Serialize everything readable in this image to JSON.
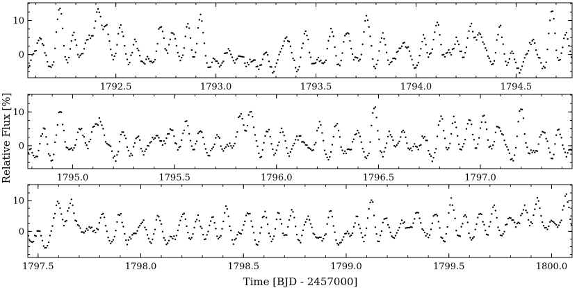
{
  "chart_data": {
    "type": "scatter",
    "ylabel": "Relative Flux [%]",
    "xlabel": "Time [BJD - 2457000]",
    "marker_color": "#000000",
    "grid": false,
    "legend": "none",
    "panels": [
      {
        "xlim": [
          1792.06,
          1794.78
        ],
        "ylim": [
          -6.8,
          15.2
        ],
        "x_ticks": [
          1792.5,
          1793.0,
          1793.5,
          1794.0,
          1794.5
        ],
        "x_tick_labels": [
          "1792.5",
          "1793.0",
          "1793.5",
          "1794.0",
          "1794.5"
        ],
        "y_ticks": [
          0,
          10
        ],
        "y_tick_labels": [
          "0",
          "10"
        ],
        "pulse_peaks": [
          [
            1792.12,
            4.8
          ],
          [
            1792.22,
            11.5
          ],
          [
            1792.29,
            5.5
          ],
          [
            1792.37,
            7.5
          ],
          [
            1792.41,
            10.5
          ],
          [
            1792.45,
            9.5
          ],
          [
            1792.52,
            7.2
          ],
          [
            1792.59,
            3.5
          ],
          [
            1792.72,
            7.0
          ],
          [
            1792.78,
            8.0
          ],
          [
            1792.86,
            7.2
          ],
          [
            1792.92,
            9.5
          ],
          [
            1793.08,
            2.0
          ],
          [
            1793.35,
            5.5
          ],
          [
            1793.45,
            4.5
          ],
          [
            1793.58,
            6.0
          ],
          [
            1793.66,
            6.0
          ],
          [
            1793.75,
            10.5
          ],
          [
            1793.83,
            4.5
          ],
          [
            1793.93,
            5.0
          ],
          [
            1794.04,
            4.5
          ],
          [
            1794.11,
            9.8
          ],
          [
            1794.2,
            5.5
          ],
          [
            1794.27,
            7.5
          ],
          [
            1794.32,
            9.0
          ],
          [
            1794.42,
            7.8
          ],
          [
            1794.58,
            4.5
          ],
          [
            1794.68,
            10.5
          ],
          [
            1794.75,
            6.0
          ]
        ]
      },
      {
        "xlim": [
          1794.78,
          1797.45
        ],
        "ylim": [
          -6.8,
          15.2
        ],
        "x_ticks": [
          1795.0,
          1795.5,
          1796.0,
          1796.5,
          1797.0
        ],
        "x_tick_labels": [
          "1795.0",
          "1795.5",
          "1796.0",
          "1796.5",
          "1797.0"
        ],
        "y_ticks": [
          0,
          10
        ],
        "y_tick_labels": [
          "0",
          "10"
        ],
        "pulse_peaks": [
          [
            1794.86,
            2.5
          ],
          [
            1794.94,
            9.5
          ],
          [
            1795.03,
            5.5
          ],
          [
            1795.1,
            6.0
          ],
          [
            1795.14,
            7.5
          ],
          [
            1795.24,
            3.0
          ],
          [
            1795.32,
            2.5
          ],
          [
            1795.41,
            5.5
          ],
          [
            1795.48,
            5.5
          ],
          [
            1795.55,
            6.5
          ],
          [
            1795.62,
            5.5
          ],
          [
            1795.72,
            3.5
          ],
          [
            1795.82,
            9.5
          ],
          [
            1795.87,
            10.0
          ],
          [
            1795.95,
            3.5
          ],
          [
            1796.03,
            4.5
          ],
          [
            1796.12,
            4.5
          ],
          [
            1796.21,
            5.5
          ],
          [
            1796.3,
            5.0
          ],
          [
            1796.39,
            3.5
          ],
          [
            1796.48,
            9.5
          ],
          [
            1796.56,
            4.5
          ],
          [
            1796.63,
            5.0
          ],
          [
            1796.72,
            3.0
          ],
          [
            1796.81,
            6.5
          ],
          [
            1796.87,
            7.0
          ],
          [
            1796.95,
            9.5
          ],
          [
            1797.02,
            8.5
          ],
          [
            1797.09,
            7.0
          ],
          [
            1797.2,
            9.5
          ],
          [
            1797.3,
            4.0
          ],
          [
            1797.38,
            3.5
          ]
        ]
      },
      {
        "xlim": [
          1797.45,
          1800.1
        ],
        "ylim": [
          -8.5,
          15.2
        ],
        "x_ticks": [
          1797.5,
          1798.0,
          1798.5,
          1799.0,
          1799.5,
          1800.0
        ],
        "x_tick_labels": [
          "1797.5",
          "1798.0",
          "1798.5",
          "1799.0",
          "1799.5",
          "1800.0"
        ],
        "y_ticks": [
          0,
          10
        ],
        "y_tick_labels": [
          "0",
          "10"
        ],
        "pulse_peaks": [
          [
            1797.6,
            10.5
          ],
          [
            1797.66,
            11.5
          ],
          [
            1797.74,
            3.0
          ],
          [
            1797.81,
            5.0
          ],
          [
            1797.9,
            3.5
          ],
          [
            1798.0,
            3.0
          ],
          [
            1798.08,
            3.0
          ],
          [
            1798.2,
            4.5
          ],
          [
            1798.27,
            4.0
          ],
          [
            1798.35,
            4.0
          ],
          [
            1798.42,
            5.5
          ],
          [
            1798.52,
            6.0
          ],
          [
            1798.6,
            3.5
          ],
          [
            1798.67,
            5.0
          ],
          [
            1798.74,
            5.5
          ],
          [
            1798.82,
            3.5
          ],
          [
            1798.92,
            4.0
          ],
          [
            1799.05,
            3.5
          ],
          [
            1799.12,
            8.0
          ],
          [
            1799.19,
            4.0
          ],
          [
            1799.28,
            5.5
          ],
          [
            1799.35,
            7.0
          ],
          [
            1799.43,
            5.0
          ],
          [
            1799.51,
            8.5
          ],
          [
            1799.58,
            4.5
          ],
          [
            1799.66,
            5.5
          ],
          [
            1799.72,
            7.0
          ],
          [
            1799.8,
            7.5
          ],
          [
            1799.87,
            10.0
          ],
          [
            1799.93,
            11.0
          ],
          [
            1800.0,
            6.5
          ],
          [
            1800.07,
            12.5
          ]
        ]
      }
    ]
  }
}
